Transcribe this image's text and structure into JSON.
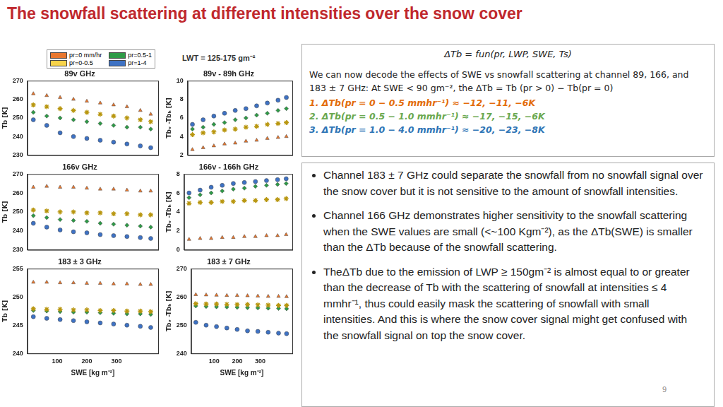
{
  "title": "The snowfall scattering at different intensities over the snow cover",
  "annotation": "LWT = 125-175 gm⁻²",
  "chart_data": [
    {
      "type": "scatter",
      "title": "89v GHz",
      "y_label": "Tb [K]",
      "tick_labels": "y",
      "x": [
        20,
        65,
        110,
        155,
        200,
        245,
        290,
        335,
        380,
        415
      ],
      "xlim": [
        0,
        440
      ],
      "xticks": [
        100,
        200,
        300
      ],
      "ylim": [
        230,
        270
      ],
      "yticks": [
        230,
        240,
        250,
        260,
        270
      ],
      "series": [
        {
          "name": "pr=0 mm/hr",
          "color": "#e8772e",
          "marker": "triangle",
          "values": [
            263,
            262,
            261,
            260,
            259,
            258,
            257,
            256,
            254,
            252
          ]
        },
        {
          "name": "pr=0-0.5",
          "color": "#f7d34a",
          "marker": "star",
          "values": [
            257,
            256,
            255,
            254,
            253,
            252,
            251,
            250,
            249,
            248
          ]
        },
        {
          "name": "pr=0.5-1",
          "color": "#2e9a47",
          "marker": "diamond",
          "values": [
            253,
            251,
            250,
            249,
            248,
            247,
            246,
            245,
            245,
            244
          ]
        },
        {
          "name": "pr=1-4",
          "color": "#3e72c4",
          "marker": "circle",
          "values": [
            249,
            246,
            242,
            240,
            239,
            238,
            237,
            236,
            235,
            234
          ]
        }
      ]
    },
    {
      "type": "scatter",
      "title": "89v - 89h GHz",
      "y_label": "Tbᵥ -Tbₕ [K]",
      "tick_labels": "y",
      "x": [
        20,
        65,
        110,
        155,
        200,
        245,
        290,
        335,
        380,
        415
      ],
      "xlim": [
        0,
        440
      ],
      "xticks": [
        100,
        200,
        300
      ],
      "ylim": [
        2,
        10
      ],
      "yticks": [
        2,
        4,
        6,
        8,
        10
      ],
      "series": [
        {
          "name": "pr=0 mm/hr",
          "color": "#e8772e",
          "marker": "triangle",
          "values": [
            2.6,
            2.8,
            3.0,
            3.2,
            3.3,
            3.5,
            3.6,
            3.8,
            3.9,
            4.0
          ]
        },
        {
          "name": "pr=0-0.5",
          "color": "#f7d34a",
          "marker": "star",
          "values": [
            4.2,
            4.4,
            4.5,
            4.7,
            4.8,
            5.0,
            5.1,
            5.3,
            5.4,
            5.5
          ]
        },
        {
          "name": "pr=0.5-1",
          "color": "#2e9a47",
          "marker": "diamond",
          "values": [
            4.8,
            5.0,
            5.3,
            5.5,
            5.8,
            6.0,
            6.3,
            6.5,
            6.8,
            7.0
          ]
        },
        {
          "name": "pr=1-4",
          "color": "#3e72c4",
          "marker": "circle",
          "values": [
            5.3,
            5.8,
            6.2,
            6.5,
            6.8,
            7.0,
            7.3,
            7.6,
            7.9,
            8.2
          ]
        }
      ]
    },
    {
      "type": "scatter",
      "title": "166v GHz",
      "y_label": "Tb [K]",
      "tick_labels": "y",
      "x": [
        20,
        65,
        110,
        155,
        200,
        245,
        290,
        335,
        380,
        415
      ],
      "xlim": [
        0,
        440
      ],
      "xticks": [
        100,
        200,
        300
      ],
      "ylim": [
        230,
        270
      ],
      "yticks": [
        230,
        240,
        250,
        260,
        270
      ],
      "series": [
        {
          "name": "pr=0 mm/hr",
          "color": "#e8772e",
          "marker": "triangle",
          "values": [
            263,
            263.5,
            263,
            263,
            262.5,
            262,
            262,
            261.5,
            261,
            261
          ]
        },
        {
          "name": "pr=0-0.5",
          "color": "#f7d34a",
          "marker": "star",
          "values": [
            251,
            250.5,
            250,
            250,
            249.5,
            249.5,
            249,
            249,
            248.5,
            248.5
          ]
        },
        {
          "name": "pr=0.5-1",
          "color": "#2e9a47",
          "marker": "diamond",
          "values": [
            248,
            247,
            246,
            245.5,
            245,
            244,
            243.5,
            243,
            242.5,
            242
          ]
        },
        {
          "name": "pr=1-4",
          "color": "#3e72c4",
          "marker": "circle",
          "values": [
            244,
            242,
            240.5,
            239.5,
            239,
            238,
            237.5,
            237,
            236.5,
            236
          ]
        }
      ]
    },
    {
      "type": "scatter",
      "title": "166v - 166h GHz",
      "y_label": "Tbᵥ -Tbₕ [K]",
      "tick_labels": "y",
      "x": [
        20,
        65,
        110,
        155,
        200,
        245,
        290,
        335,
        380,
        415
      ],
      "xlim": [
        0,
        440
      ],
      "xticks": [
        100,
        200,
        300
      ],
      "ylim": [
        0,
        8
      ],
      "yticks": [
        0,
        2,
        4,
        6,
        8
      ],
      "series": [
        {
          "name": "pr=0 mm/hr",
          "color": "#e8772e",
          "marker": "triangle",
          "values": [
            1.1,
            1.2,
            1.2,
            1.3,
            1.3,
            1.4,
            1.4,
            1.5,
            1.5,
            1.6
          ]
        },
        {
          "name": "pr=0-0.5",
          "color": "#f7d34a",
          "marker": "star",
          "values": [
            4.9,
            5.0,
            5.0,
            5.1,
            5.1,
            5.2,
            5.2,
            5.3,
            5.3,
            5.4
          ]
        },
        {
          "name": "pr=0.5-1",
          "color": "#2e9a47",
          "marker": "diamond",
          "values": [
            5.5,
            5.8,
            6.0,
            6.2,
            6.4,
            6.5,
            6.7,
            6.8,
            6.9,
            7.0
          ]
        },
        {
          "name": "pr=1-4",
          "color": "#3e72c4",
          "marker": "circle",
          "values": [
            6.0,
            6.3,
            6.6,
            6.8,
            7.0,
            7.1,
            7.2,
            7.3,
            7.4,
            7.5
          ]
        }
      ]
    },
    {
      "type": "scatter",
      "title": "183 ± 3 GHz",
      "y_label": "Tb [K]",
      "x_label": "SWE [kg m⁻²]",
      "x": [
        20,
        65,
        110,
        155,
        200,
        245,
        290,
        335,
        380,
        415
      ],
      "xlim": [
        0,
        440
      ],
      "xticks": [
        100,
        200,
        300
      ],
      "ylim": [
        240,
        255
      ],
      "yticks": [
        240,
        245,
        250,
        255
      ],
      "series": [
        {
          "name": "pr=0 mm/hr",
          "color": "#e8772e",
          "marker": "triangle",
          "values": [
            252.6,
            252.6,
            252.5,
            252.5,
            252.4,
            252.4,
            252.3,
            252.3,
            252.2,
            252.2
          ]
        },
        {
          "name": "pr=0-0.5",
          "color": "#f7d34a",
          "marker": "star",
          "values": [
            247.9,
            247.8,
            247.8,
            247.7,
            247.7,
            247.6,
            247.6,
            247.5,
            247.5,
            247.4
          ]
        },
        {
          "name": "pr=0.5-1",
          "color": "#2e9a47",
          "marker": "diamond",
          "values": [
            247.6,
            247.5,
            247.4,
            247.3,
            247.3,
            247.2,
            247.1,
            247.0,
            247.0,
            246.9
          ]
        },
        {
          "name": "pr=1-4",
          "color": "#3e72c4",
          "marker": "circle",
          "values": [
            246.5,
            246.2,
            246.0,
            245.8,
            245.6,
            245.4,
            245.2,
            245.0,
            244.8,
            244.6
          ]
        }
      ]
    },
    {
      "type": "scatter",
      "title": "183 ± 7 GHz",
      "y_label": "Tbᵥ -Tbₕ [K]",
      "x_label": "SWE [kg m⁻²]",
      "x": [
        20,
        65,
        110,
        155,
        200,
        245,
        290,
        335,
        380,
        415
      ],
      "xlim": [
        0,
        440
      ],
      "xticks": [
        100,
        200,
        300
      ],
      "ylim": [
        240,
        270
      ],
      "yticks": [
        240,
        250,
        260,
        270
      ],
      "series": [
        {
          "name": "pr=0 mm/hr",
          "color": "#e8772e",
          "marker": "triangle",
          "values": [
            260.8,
            260.7,
            260.6,
            260.5,
            260.5,
            260.4,
            260.3,
            260.2,
            260.2,
            260.1
          ]
        },
        {
          "name": "pr=0-0.5",
          "color": "#f7d34a",
          "marker": "star",
          "values": [
            257.6,
            257.5,
            257.5,
            257.4,
            257.3,
            257.3,
            257.2,
            257.1,
            257.0,
            257.0
          ]
        },
        {
          "name": "pr=0.5-1",
          "color": "#2e9a47",
          "marker": "diamond",
          "values": [
            256.8,
            256.6,
            256.5,
            256.4,
            256.3,
            256.2,
            256.1,
            256.0,
            255.9,
            255.8
          ]
        },
        {
          "name": "pr=1-4",
          "color": "#3e72c4",
          "marker": "circle",
          "values": [
            251,
            250,
            249.5,
            249,
            248.5,
            248,
            247.8,
            247.5,
            247.2,
            247
          ]
        }
      ]
    }
  ],
  "panel1": {
    "formula": "ΔTb = fun(pr, LWP, SWE, Ts)",
    "text": "We can now decode the effects of SWE vs snowfall scattering  at channel 89, 166, and 183 ± 7 GHz: At SWE < 90 gm⁻², the ΔTb = Tb (pr > 0) − Tb(pr = 0)",
    "items": [
      {
        "number": "1.",
        "text": "ΔTb(pr = 0 − 0.5 mmhr⁻¹) ≈ −12, −11, −6K",
        "color": "#e36c0a"
      },
      {
        "number": "2.",
        "text": "ΔTb(pr = 0.5 − 1.0 mmhr⁻¹) ≈ −17, −15, −6K",
        "color": "#6aa84f"
      },
      {
        "number": "3.",
        "text": "ΔTb(pr = 1.0 − 4.0 mmhr⁻¹) ≈ −20, −23, −8K",
        "color": "#2e75b6"
      }
    ]
  },
  "panel2": {
    "bullets": [
      "Channel 183 ± 7 GHz could separate the snowfall from no snowfall signal over the snow cover but it is not sensitive to the amount of snowfall intensities.",
      "Channel 166 GHz demonstrates higher sensitivity to the snowfall scattering when the SWE values are small (<~100 Kgm⁻²), as the ΔTb(SWE) is smaller than the ΔTb because of the snowfall scattering.",
      "TheΔTb due to the emission of LWP ≥ 150gm⁻² is almost equal to or greater than the decrease of Tb with the scattering of snowfall at intensities ≤ 4 mmhr⁻¹, thus could easily mask the scattering of snowfall with small intensities. And this is where the snow cover signal might get confused with the snowfall signal on top the snow cover."
    ]
  },
  "page_number": "9"
}
